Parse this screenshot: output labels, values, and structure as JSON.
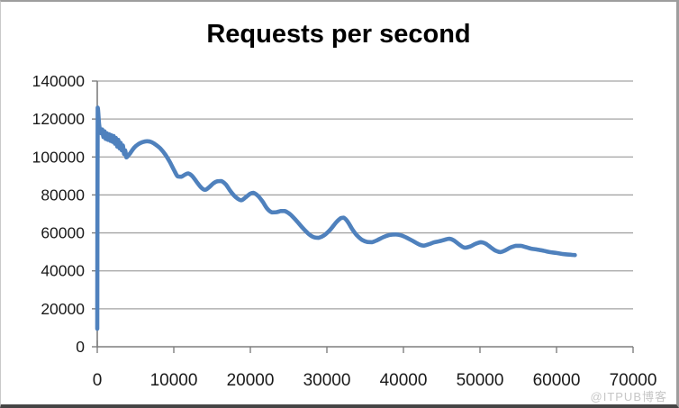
{
  "window": {
    "watermark": "@ITPUB博客"
  },
  "chart_data": {
    "type": "line",
    "title": "Requests per second",
    "xlabel": "",
    "ylabel": "",
    "xlim": [
      0,
      70000
    ],
    "ylim": [
      0,
      140000
    ],
    "x_ticks": [
      0,
      10000,
      20000,
      30000,
      40000,
      50000,
      60000,
      70000
    ],
    "y_ticks": [
      0,
      20000,
      40000,
      60000,
      80000,
      100000,
      120000,
      140000
    ],
    "grid": "horizontal",
    "legend": "none",
    "colors": {
      "series": "#4f81bd",
      "gridline": "#a3a3a3",
      "axis": "#7f7f7f",
      "tick_label": "#1a1a1a",
      "title": "#000000",
      "background": "#ffffff",
      "watermark": "#c6c6c6"
    },
    "series": [
      {
        "name": "Requests per second",
        "points": [
          [
            0,
            9500
          ],
          [
            60,
            126000
          ],
          [
            250,
            117000
          ],
          [
            400,
            113500
          ],
          [
            500,
            112500
          ],
          [
            650,
            114500
          ],
          [
            800,
            110500
          ],
          [
            950,
            113500
          ],
          [
            1100,
            109500
          ],
          [
            1250,
            112500
          ],
          [
            1400,
            109000
          ],
          [
            1550,
            112000
          ],
          [
            1700,
            108500
          ],
          [
            1850,
            111500
          ],
          [
            2000,
            108000
          ],
          [
            2150,
            111000
          ],
          [
            2300,
            107000
          ],
          [
            2450,
            110000
          ],
          [
            2600,
            105500
          ],
          [
            2750,
            109000
          ],
          [
            2900,
            104500
          ],
          [
            3050,
            107500
          ],
          [
            3200,
            103500
          ],
          [
            3350,
            106000
          ],
          [
            3500,
            101500
          ],
          [
            3650,
            103500
          ],
          [
            3800,
            99800
          ],
          [
            4000,
            100500
          ],
          [
            4300,
            102000
          ],
          [
            4800,
            104800
          ],
          [
            5300,
            106600
          ],
          [
            5900,
            107800
          ],
          [
            6500,
            108300
          ],
          [
            7100,
            107800
          ],
          [
            7700,
            106300
          ],
          [
            8300,
            104200
          ],
          [
            8900,
            101200
          ],
          [
            9500,
            97200
          ],
          [
            10100,
            92500
          ],
          [
            10500,
            89800
          ],
          [
            11000,
            89600
          ],
          [
            11500,
            90800
          ],
          [
            11900,
            91300
          ],
          [
            12400,
            90000
          ],
          [
            13000,
            86800
          ],
          [
            13600,
            83800
          ],
          [
            14100,
            82700
          ],
          [
            14600,
            84000
          ],
          [
            15200,
            86200
          ],
          [
            15700,
            87200
          ],
          [
            16200,
            87300
          ],
          [
            16800,
            85500
          ],
          [
            17400,
            82000
          ],
          [
            18100,
            78800
          ],
          [
            18800,
            77200
          ],
          [
            19400,
            78800
          ],
          [
            20000,
            80700
          ],
          [
            20400,
            81100
          ],
          [
            21000,
            79500
          ],
          [
            21600,
            76500
          ],
          [
            22200,
            72800
          ],
          [
            22800,
            70800
          ],
          [
            23400,
            70900
          ],
          [
            24000,
            71500
          ],
          [
            24500,
            71500
          ],
          [
            25200,
            69800
          ],
          [
            26000,
            66500
          ],
          [
            26800,
            62800
          ],
          [
            27600,
            59500
          ],
          [
            28300,
            57700
          ],
          [
            28900,
            57400
          ],
          [
            29600,
            58600
          ],
          [
            30400,
            61500
          ],
          [
            31200,
            65500
          ],
          [
            31800,
            67700
          ],
          [
            32200,
            68000
          ],
          [
            32700,
            66000
          ],
          [
            33300,
            62000
          ],
          [
            33900,
            58800
          ],
          [
            34600,
            56300
          ],
          [
            35300,
            55200
          ],
          [
            35900,
            55100
          ],
          [
            36600,
            56200
          ],
          [
            37400,
            57800
          ],
          [
            38200,
            58900
          ],
          [
            39000,
            59200
          ],
          [
            39700,
            58700
          ],
          [
            40400,
            57500
          ],
          [
            41200,
            55800
          ],
          [
            42000,
            54000
          ],
          [
            42600,
            53300
          ],
          [
            43300,
            54000
          ],
          [
            44000,
            55000
          ],
          [
            44700,
            55600
          ],
          [
            45400,
            56400
          ],
          [
            46000,
            56900
          ],
          [
            46600,
            56000
          ],
          [
            47300,
            53800
          ],
          [
            48000,
            52200
          ],
          [
            48700,
            52800
          ],
          [
            49400,
            54200
          ],
          [
            50100,
            55100
          ],
          [
            50700,
            54400
          ],
          [
            51400,
            52400
          ],
          [
            52100,
            50500
          ],
          [
            52700,
            49900
          ],
          [
            53300,
            50800
          ],
          [
            54000,
            52300
          ],
          [
            54700,
            53200
          ],
          [
            55300,
            53200
          ],
          [
            56000,
            52500
          ],
          [
            56700,
            51700
          ],
          [
            57500,
            51200
          ],
          [
            58300,
            50600
          ],
          [
            59100,
            49900
          ],
          [
            60000,
            49400
          ],
          [
            61000,
            48800
          ],
          [
            62000,
            48400
          ],
          [
            62400,
            48300
          ]
        ]
      }
    ]
  }
}
